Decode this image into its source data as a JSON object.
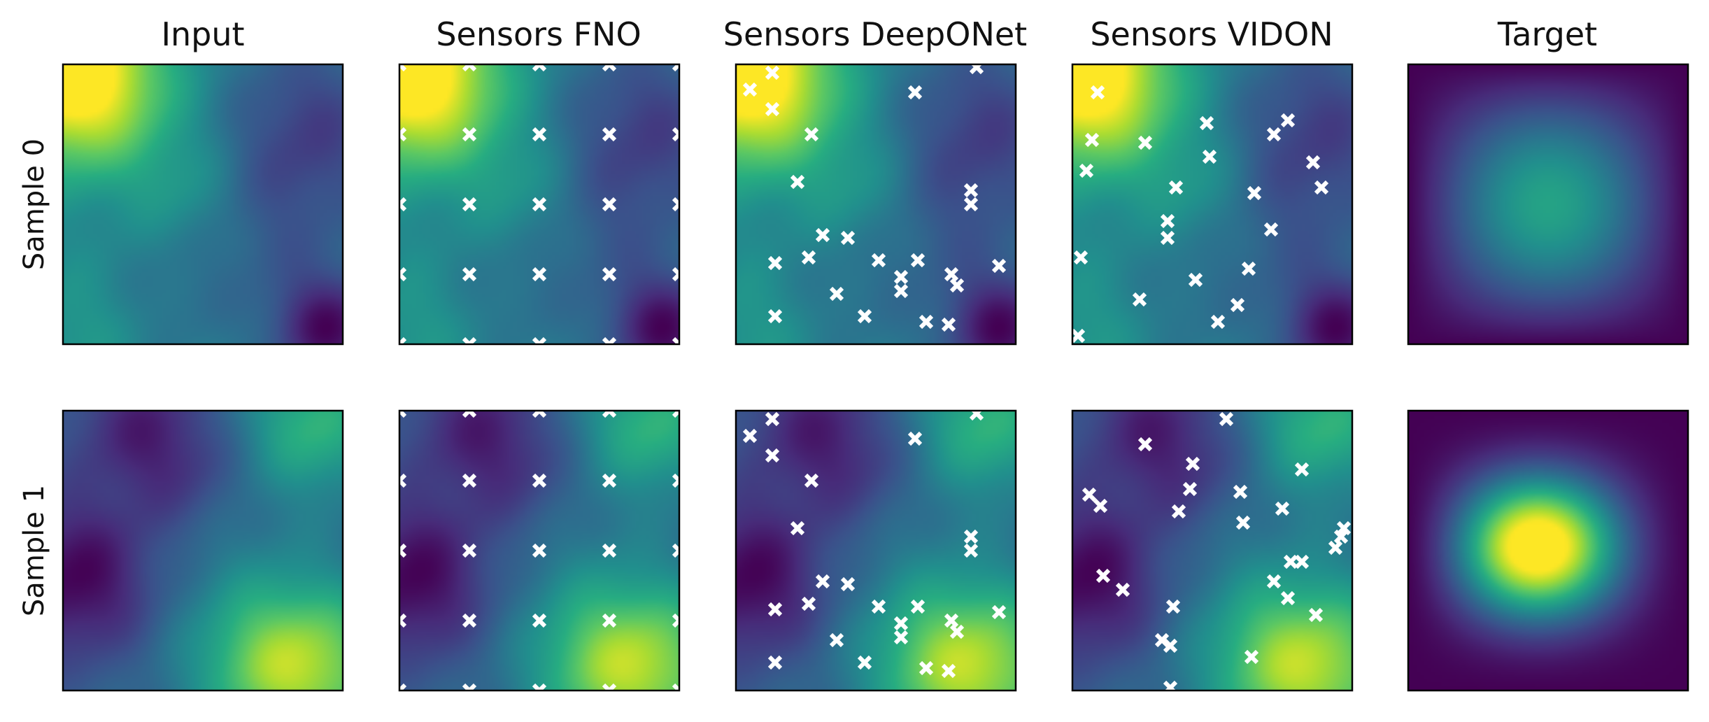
{
  "chart_data": {
    "type": "heatmap",
    "colormap": "viridis",
    "column_titles": [
      "Input",
      "Sensors FNO",
      "Sensors DeepONet",
      "Sensors VIDON",
      "Target"
    ],
    "row_labels": [
      "Sample 0",
      "Sample 1"
    ],
    "panel_columns": [
      "input",
      "fno",
      "deeponet",
      "vidon",
      "target"
    ],
    "domain": [
      0,
      1
    ],
    "samples": [
      {
        "label": "Sample 0",
        "input_field": {
          "base": 0.42,
          "blobs": [
            [
              0.02,
              0.02,
              0.52,
              0.22
            ],
            [
              0.1,
              0.1,
              0.22,
              0.22
            ],
            [
              0.45,
              0.45,
              0.12,
              0.15
            ],
            [
              0.05,
              0.95,
              0.12,
              0.2
            ],
            [
              0.95,
              0.95,
              -0.38,
              0.14
            ],
            [
              0.9,
              0.2,
              -0.2,
              0.22
            ],
            [
              0.75,
              0.55,
              -0.12,
              0.22
            ],
            [
              0.35,
              0.85,
              -0.06,
              0.15
            ]
          ]
        },
        "target_field": {
          "peak": [
            0.5,
            0.5
          ],
          "amplitude": 0.58,
          "width": [
            0.33,
            0.33
          ]
        },
        "sensors": {
          "fno": [
            [
              0.0,
              0.0
            ],
            [
              0.25,
              0.0
            ],
            [
              0.5,
              0.0
            ],
            [
              0.75,
              0.0
            ],
            [
              1.0,
              0.0
            ],
            [
              0.0,
              0.25
            ],
            [
              0.25,
              0.25
            ],
            [
              0.5,
              0.25
            ],
            [
              0.75,
              0.25
            ],
            [
              1.0,
              0.25
            ],
            [
              0.0,
              0.5
            ],
            [
              0.25,
              0.5
            ],
            [
              0.5,
              0.5
            ],
            [
              0.75,
              0.5
            ],
            [
              1.0,
              0.5
            ],
            [
              0.0,
              0.75
            ],
            [
              0.25,
              0.75
            ],
            [
              0.5,
              0.75
            ],
            [
              0.75,
              0.75
            ],
            [
              1.0,
              0.75
            ],
            [
              0.0,
              1.0
            ],
            [
              0.25,
              1.0
            ],
            [
              0.5,
              1.0
            ],
            [
              0.75,
              1.0
            ],
            [
              1.0,
              1.0
            ]
          ],
          "deeponet": [
            [
              0.05,
              0.09
            ],
            [
              0.13,
              0.03
            ],
            [
              0.13,
              0.16
            ],
            [
              0.27,
              0.25
            ],
            [
              0.22,
              0.42
            ],
            [
              0.64,
              0.1
            ],
            [
              0.86,
              0.01
            ],
            [
              0.84,
              0.45
            ],
            [
              0.84,
              0.5
            ],
            [
              0.31,
              0.61
            ],
            [
              0.4,
              0.62
            ],
            [
              0.26,
              0.69
            ],
            [
              0.14,
              0.71
            ],
            [
              0.51,
              0.7
            ],
            [
              0.65,
              0.7
            ],
            [
              0.59,
              0.76
            ],
            [
              0.77,
              0.75
            ],
            [
              0.94,
              0.72
            ],
            [
              0.59,
              0.81
            ],
            [
              0.79,
              0.79
            ],
            [
              0.36,
              0.82
            ],
            [
              0.46,
              0.9
            ],
            [
              0.68,
              0.92
            ],
            [
              0.76,
              0.93
            ],
            [
              0.14,
              0.9
            ]
          ],
          "vidon": [
            [
              0.09,
              0.1
            ],
            [
              0.07,
              0.27
            ],
            [
              0.26,
              0.28
            ],
            [
              0.48,
              0.21
            ],
            [
              0.72,
              0.25
            ],
            [
              0.77,
              0.2
            ],
            [
              0.49,
              0.33
            ],
            [
              0.05,
              0.38
            ],
            [
              0.37,
              0.44
            ],
            [
              0.65,
              0.46
            ],
            [
              0.86,
              0.35
            ],
            [
              0.89,
              0.44
            ],
            [
              0.34,
              0.56
            ],
            [
              0.71,
              0.59
            ],
            [
              0.34,
              0.62
            ],
            [
              0.03,
              0.69
            ],
            [
              0.63,
              0.73
            ],
            [
              0.44,
              0.77
            ],
            [
              0.24,
              0.84
            ],
            [
              0.59,
              0.86
            ],
            [
              0.52,
              0.92
            ],
            [
              0.02,
              0.97
            ]
          ]
        }
      },
      {
        "label": "Sample 1",
        "input_field": {
          "base": 0.33,
          "blobs": [
            [
              0.05,
              0.6,
              -0.32,
              0.2
            ],
            [
              0.28,
              0.05,
              -0.22,
              0.18
            ],
            [
              0.9,
              0.05,
              0.32,
              0.18
            ],
            [
              0.9,
              0.92,
              0.42,
              0.22
            ],
            [
              0.7,
              0.9,
              0.22,
              0.2
            ],
            [
              0.45,
              0.25,
              -0.1,
              0.15
            ],
            [
              0.55,
              0.5,
              0.05,
              0.2
            ]
          ]
        },
        "target_field": {
          "peak": [
            0.44,
            0.48
          ],
          "amplitude": 1.0,
          "width": [
            0.31,
            0.25
          ]
        },
        "sensors": {
          "fno": [
            [
              0.0,
              0.0
            ],
            [
              0.25,
              0.0
            ],
            [
              0.5,
              0.0
            ],
            [
              0.75,
              0.0
            ],
            [
              1.0,
              0.0
            ],
            [
              0.0,
              0.25
            ],
            [
              0.25,
              0.25
            ],
            [
              0.5,
              0.25
            ],
            [
              0.75,
              0.25
            ],
            [
              1.0,
              0.25
            ],
            [
              0.0,
              0.5
            ],
            [
              0.25,
              0.5
            ],
            [
              0.5,
              0.5
            ],
            [
              0.75,
              0.5
            ],
            [
              1.0,
              0.5
            ],
            [
              0.0,
              0.75
            ],
            [
              0.25,
              0.75
            ],
            [
              0.5,
              0.75
            ],
            [
              0.75,
              0.75
            ],
            [
              1.0,
              0.75
            ],
            [
              0.0,
              1.0
            ],
            [
              0.25,
              1.0
            ],
            [
              0.5,
              1.0
            ],
            [
              0.75,
              1.0
            ],
            [
              1.0,
              1.0
            ]
          ],
          "deeponet": [
            [
              0.05,
              0.09
            ],
            [
              0.13,
              0.03
            ],
            [
              0.13,
              0.16
            ],
            [
              0.27,
              0.25
            ],
            [
              0.22,
              0.42
            ],
            [
              0.64,
              0.1
            ],
            [
              0.86,
              0.01
            ],
            [
              0.84,
              0.45
            ],
            [
              0.84,
              0.5
            ],
            [
              0.31,
              0.61
            ],
            [
              0.4,
              0.62
            ],
            [
              0.26,
              0.69
            ],
            [
              0.14,
              0.71
            ],
            [
              0.51,
              0.7
            ],
            [
              0.65,
              0.7
            ],
            [
              0.59,
              0.76
            ],
            [
              0.77,
              0.75
            ],
            [
              0.94,
              0.72
            ],
            [
              0.59,
              0.81
            ],
            [
              0.79,
              0.79
            ],
            [
              0.36,
              0.82
            ],
            [
              0.46,
              0.9
            ],
            [
              0.68,
              0.92
            ],
            [
              0.76,
              0.93
            ],
            [
              0.14,
              0.9
            ]
          ],
          "vidon": [
            [
              0.55,
              0.03
            ],
            [
              0.26,
              0.12
            ],
            [
              0.43,
              0.19
            ],
            [
              0.82,
              0.21
            ],
            [
              0.42,
              0.28
            ],
            [
              0.6,
              0.29
            ],
            [
              0.06,
              0.3
            ],
            [
              0.1,
              0.34
            ],
            [
              0.38,
              0.36
            ],
            [
              0.61,
              0.4
            ],
            [
              0.75,
              0.35
            ],
            [
              0.97,
              0.42
            ],
            [
              0.96,
              0.45
            ],
            [
              0.94,
              0.49
            ],
            [
              0.78,
              0.54
            ],
            [
              0.82,
              0.54
            ],
            [
              0.72,
              0.61
            ],
            [
              0.11,
              0.59
            ],
            [
              0.18,
              0.64
            ],
            [
              0.77,
              0.67
            ],
            [
              0.36,
              0.7
            ],
            [
              0.87,
              0.73
            ],
            [
              0.32,
              0.82
            ],
            [
              0.35,
              0.84
            ],
            [
              0.64,
              0.88
            ],
            [
              0.35,
              0.99
            ]
          ]
        }
      }
    ]
  }
}
